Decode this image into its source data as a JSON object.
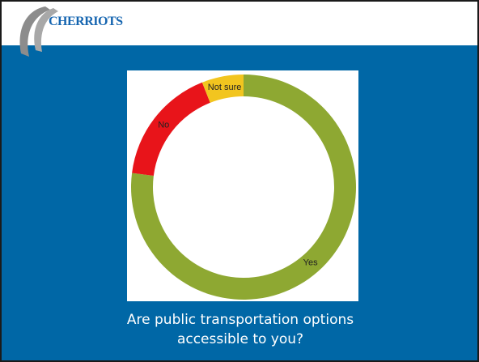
{
  "header": {
    "logo": "CHERRIOTS"
  },
  "chart_data": {
    "type": "donut",
    "categories": [
      "Yes",
      "No",
      "Not sure"
    ],
    "values": [
      77,
      17,
      6
    ],
    "colors": [
      "#8ea832",
      "#e8141a",
      "#f2c51f"
    ]
  },
  "caption": "Are public transportation options accessible to you?"
}
